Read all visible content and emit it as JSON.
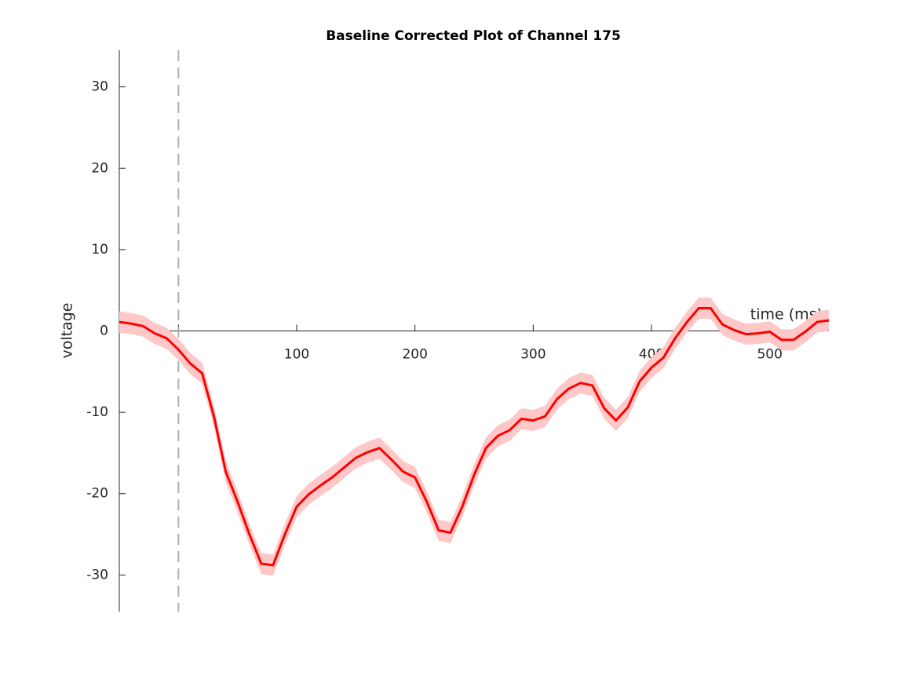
{
  "chart_data": {
    "type": "line",
    "title": "Baseline Corrected Plot of Channel 175",
    "xlabel": "time (ms)",
    "ylabel": "voltage",
    "x": [
      -50,
      -40,
      -30,
      -20,
      -10,
      0,
      10,
      20,
      30,
      40,
      50,
      60,
      70,
      80,
      90,
      100,
      110,
      120,
      130,
      140,
      150,
      160,
      170,
      180,
      190,
      200,
      210,
      220,
      230,
      240,
      250,
      260,
      270,
      280,
      290,
      300,
      310,
      320,
      330,
      340,
      350,
      360,
      370,
      380,
      390,
      400,
      410,
      420,
      430,
      440,
      450,
      460,
      470,
      480,
      490,
      500,
      510,
      520,
      530,
      540,
      550
    ],
    "series": [
      {
        "color": "#ff0000",
        "band_color": "#ffc8c8",
        "error": 1.3,
        "values": [
          1.1,
          0.9,
          0.6,
          -0.3,
          -0.9,
          -2.3,
          -4,
          -5.2,
          -10.5,
          -17.3,
          -21,
          -25,
          -28.6,
          -28.8,
          -25,
          -21.6,
          -20.1,
          -19,
          -18,
          -16.8,
          -15.6,
          -14.9,
          -14.4,
          -15.8,
          -17.3,
          -18,
          -21,
          -24.5,
          -24.8,
          -21.6,
          -17.7,
          -14.4,
          -12.9,
          -12.2,
          -10.8,
          -11,
          -10.5,
          -8.4,
          -7.1,
          -6.4,
          -6.7,
          -9.5,
          -11,
          -9.4,
          -6.2,
          -4.5,
          -3.3,
          -0.9,
          1.1,
          2.8,
          2.8,
          0.8,
          0.1,
          -0.4,
          -0.3,
          -0.1,
          -1.1,
          -1.1,
          -0.1,
          1.1,
          1.3
        ]
      }
    ],
    "xlim": [
      -50,
      550
    ],
    "xticks": [
      0,
      100,
      200,
      300,
      400,
      500
    ],
    "ylim": [
      -34.5,
      34.5
    ],
    "yticks": [
      -30,
      -20,
      -10,
      0,
      10,
      20,
      30
    ],
    "vline": 0
  }
}
